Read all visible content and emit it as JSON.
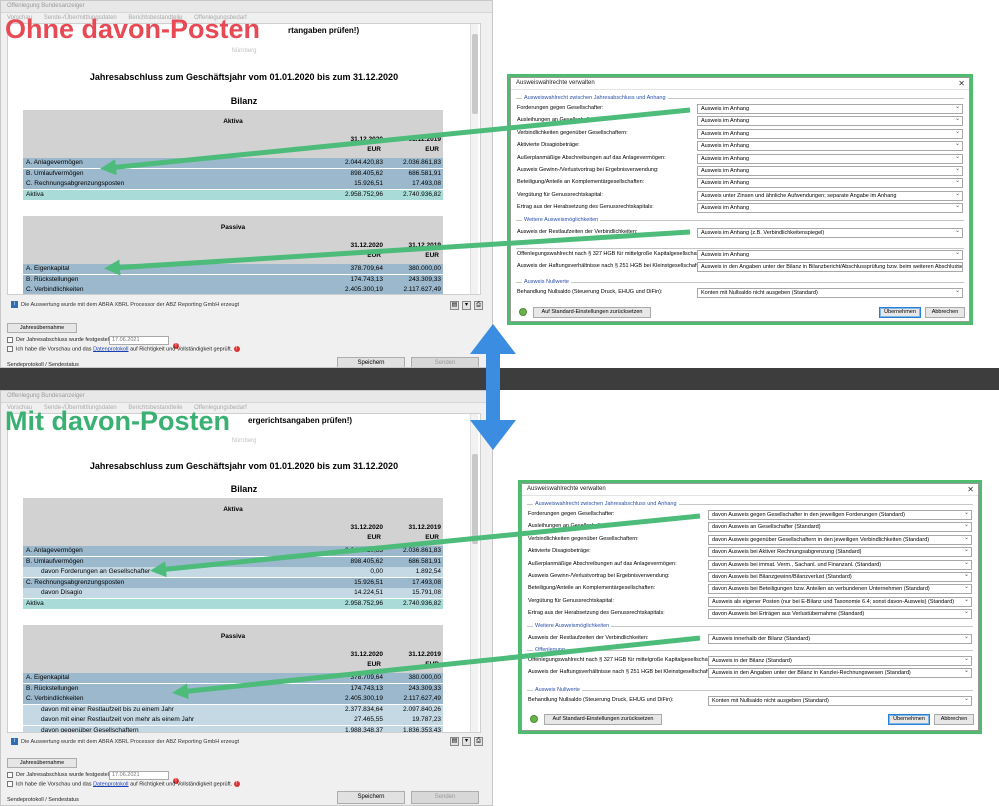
{
  "overlay": {
    "top_label": "Ohne davon-Posten",
    "bottom_label": "Mit davon-Posten"
  },
  "top_app": {
    "window_title": "Offenlegung Bundesanzeiger",
    "tabs": [
      "Vorschau",
      "Sende-/Übermittlungsdaten",
      "Berichtsbestandteile",
      "Offenlegungsbedarf"
    ],
    "header_hint_fragment": "rtangaben prüfen!)",
    "city": "Nürnberg",
    "doc_title": "Jahresabschluss zum Geschäftsjahr vom 01.01.2020 bis zum 31.12.2020",
    "bilanz_title": "Bilanz",
    "aktiva_title": "Aktiva",
    "passiva_title": "Passiva",
    "col1_date": "31.12.2020",
    "col2_date": "31.12.2019",
    "currency": "EUR",
    "aktiva_rows": [
      {
        "label": "A. Anlagevermögen",
        "v1": "2.044.420,83",
        "v2": "2.036.861,83"
      },
      {
        "label": "B. Umlaufvermögen",
        "v1": "898.405,62",
        "v2": "686.581,91"
      },
      {
        "label": "C. Rechnungsabgrenzungsposten",
        "v1": "15.926,51",
        "v2": "17.493,08"
      },
      {
        "label": "Aktiva",
        "v1": "2.958.752,96",
        "v2": "2.740.936,82"
      }
    ],
    "passiva_rows": [
      {
        "label": "A. Eigenkapital",
        "v1": "378.709,64",
        "v2": "380.000,00"
      },
      {
        "label": "B. Rückstellungen",
        "v1": "174.743,13",
        "v2": "243.309,33"
      },
      {
        "label": "C. Verbindlichkeiten",
        "v1": "2.405.300,19",
        "v2": "2.117.627,49"
      },
      {
        "label": "Passiva",
        "v1": "2.958.752,96",
        "v2": "2.740.936,82"
      }
    ],
    "footer_note": "Die Auswertung wurde mit dem ABRA XBRL Processor der ABZ Reporting GmbH erzeugt",
    "jahresuebernahme_btn": "Jahresübernahme",
    "chk1_label": "Der Jahresabschluss wurde festgestellt am:",
    "date_value": "17.06.2021",
    "chk2_prefix": "Ich habe die Vorschau und das",
    "chk2_link": "Datenprotokoll",
    "chk2_suffix": "auf Richtigkeit und Vollständigkeit geprüft.",
    "save_btn": "Speichern",
    "send_btn": "Senden",
    "sendeprotokoll": "Sendeprotokoll / Sendestatus"
  },
  "bottom_app": {
    "window_title": "Offenlegung Bundesanzeiger",
    "tabs": [
      "Vorschau",
      "Sende-/Übermittlungsdaten",
      "Berichtsbestandteile",
      "Offenlegungsbedarf"
    ],
    "header_hint_fragment": "ergerichtsangaben prüfen!)",
    "city": "Nürnberg",
    "doc_title": "Jahresabschluss zum Geschäftsjahr vom 01.01.2020 bis zum 31.12.2020",
    "bilanz_title": "Bilanz",
    "aktiva_title": "Aktiva",
    "passiva_title": "Passiva",
    "col1_date": "31.12.2020",
    "col2_date": "31.12.2019",
    "currency": "EUR",
    "aktiva_rows": [
      {
        "label": "A. Anlagevermögen",
        "v1": "2.044.420,83",
        "v2": "2.036.861,83",
        "style": "blue"
      },
      {
        "label": "B. Umlaufvermögen",
        "v1": "898.405,62",
        "v2": "686.581,91",
        "style": "blue"
      },
      {
        "label": "davon Forderungen an Gesellschafter",
        "v1": "0,00",
        "v2": "1.892,54",
        "style": "lblue",
        "sub": true
      },
      {
        "label": "C. Rechnungsabgrenzungsposten",
        "v1": "15.926,51",
        "v2": "17.493,08",
        "style": "blue"
      },
      {
        "label": "davon Disagio",
        "v1": "14.224,51",
        "v2": "15.791,08",
        "style": "lblue",
        "sub": true
      },
      {
        "label": "Aktiva",
        "v1": "2.958.752,96",
        "v2": "2.740.936,82",
        "style": "teal"
      }
    ],
    "passiva_rows": [
      {
        "label": "A. Eigenkapital",
        "v1": "378.709,64",
        "v2": "380.000,00",
        "style": "blue"
      },
      {
        "label": "B. Rückstellungen",
        "v1": "174.743,13",
        "v2": "243.309,33",
        "style": "blue"
      },
      {
        "label": "C. Verbindlichkeiten",
        "v1": "2.405.300,19",
        "v2": "2.117.627,49",
        "style": "blue"
      },
      {
        "label": "davon mit einer Restlaufzeit bis zu einem Jahr",
        "v1": "2.377.834,64",
        "v2": "2.097.840,26",
        "style": "lblue",
        "sub": true
      },
      {
        "label": "davon mit einer Restlaufzeit von mehr als einem Jahr",
        "v1": "27.465,55",
        "v2": "19.787,23",
        "style": "lblue",
        "sub": true
      },
      {
        "label": "davon gegenüber Gesellschaftern",
        "v1": "1.988.348,37",
        "v2": "1.836.353,43",
        "style": "lblue",
        "sub": true
      },
      {
        "label": "Passiva",
        "v1": "2.958.752,96",
        "v2": "2.740.936,82",
        "style": "teal"
      }
    ],
    "footer_note": "Die Auswertung wurde mit dem ABRA XBRL Processor der ABZ Reporting GmbH erzeugt",
    "jahresuebernahme_btn": "Jahresübernahme",
    "chk1_label": "Der Jahresabschluss wurde festgestellt am:",
    "date_value": "17.06.2021",
    "chk2_prefix": "Ich habe die Vorschau und das",
    "chk2_link": "Datenprotokoll",
    "chk2_suffix": "auf Richtigkeit und Vollständigkeit geprüft.",
    "save_btn": "Speichern",
    "send_btn": "Senden",
    "sendeprotokoll": "Sendeprotokoll / Sendestatus"
  },
  "top_dialog": {
    "title": "Ausweiswahlrechte verwalten",
    "group1": "Ausweiswahlrecht zwischen Jahresabschluss und Anhang",
    "rows1": [
      {
        "label": "Forderungen gegen Gesellschafter:",
        "value": "Ausweis im Anhang"
      },
      {
        "label": "Ausleihungen an Gesellschafter:",
        "value": "Ausweis im Anhang"
      },
      {
        "label": "Verbindlichkeiten gegenüber Gesellschaftern:",
        "value": "Ausweis im Anhang"
      },
      {
        "label": "Aktivierte Disagiobeträge:",
        "value": "Ausweis im Anhang"
      },
      {
        "label": "Außerplanmäßige Abschreibungen auf das Anlagevermögen:",
        "value": "Ausweis im Anhang"
      },
      {
        "label": "Ausweis Gewinn-/Verlustvortrag bei Ergebnisverwendung:",
        "value": "Ausweis im Anhang"
      },
      {
        "label": "Beteiligung/Anteile an Komplementärgesellschaften:",
        "value": "Ausweis im Anhang"
      },
      {
        "label": "Vergütung für Genussrechtskapital:",
        "value": "Ausweis unter Zinsen und ähnliche Aufwendungen; separate Angabe im Anhang"
      },
      {
        "label": "Ertrag aus der Herabsetzung des Genussrechtskapitals:",
        "value": "Ausweis im Anhang"
      }
    ],
    "group2": "Weitere Ausweismöglichkeiten",
    "rows2": [
      {
        "label": "Ausweis der Restlaufzeiten der Verbindlichkeiten:",
        "value": "Ausweis im Anhang (z.B. Verbindlichkeitenspiegel)"
      }
    ],
    "rows3": [
      {
        "label": "Offenlegungswahlrecht nach § 327 HGB für mittelgroße Kapitalgesellschaften:",
        "value": "Ausweis im Anhang"
      },
      {
        "label": "Ausweis der Haftungsverhältnisse nach § 251 HGB bei Kleinstgesellschaften:",
        "value": "Ausweis in den Angaben unter der Bilanz in Bilanzbericht/Abschlussprüfung bzw. beim weiteren Abschlusses"
      }
    ],
    "group4": "Ausweis Nullwerte",
    "rows4": [
      {
        "label": "Behandlung Nullsaldo (Steuerung Druck, EHUG und DiFin):",
        "value": "Konten mit Nullsaldo nicht ausgeben (Standard)"
      }
    ],
    "reset_btn": "Auf Standard-Einstellungen zurücksetzen",
    "ok_btn": "Übernehmen",
    "cancel_btn": "Abbrechen"
  },
  "bottom_dialog": {
    "title": "Ausweiswahlrechte verwalten",
    "group1": "Ausweiswahlrecht zwischen Jahresabschluss und Anhang",
    "rows1": [
      {
        "label": "Forderungen gegen Gesellschafter:",
        "value": "davon Ausweis gegen Gesellschafter in den jeweiligen Forderungen (Standard)"
      },
      {
        "label": "Ausleihungen an Gesellschafter:",
        "value": "davon Ausweis an Gesellschafter (Standard)"
      },
      {
        "label": "Verbindlichkeiten gegenüber Gesellschaftern:",
        "value": "davon Ausweis gegenüber Gesellschaftern in den jeweiligen Verbindlichkeiten (Standard)"
      },
      {
        "label": "Aktivierte Disagiobeträge:",
        "value": "davon Ausweis bei Aktiver Rechnungsabgrenzung (Standard)"
      },
      {
        "label": "Außerplanmäßige Abschreibungen auf das Anlagevermögen:",
        "value": "davon Ausweis bei immat. Verm., Sachanl. und Finanzanl. (Standard)"
      },
      {
        "label": "Ausweis Gewinn-/Verlustvortrag bei Ergebnisverwendung:",
        "value": "davon Ausweis bei Bilanzgewinn/Bilanzverlust (Standard)"
      },
      {
        "label": "Beteiligung/Anteile an Komplementärgesellschaften:",
        "value": "davon Ausweis bei Beteiligungen bzw. Anteilen an verbundenen Unternehmen (Standard)"
      },
      {
        "label": "Vergütung für Genussrechtskapital:",
        "value": "Ausweis als eigener Posten (nur bei E-Bilanz und Taxonomie 6.4; sonst davon-Ausweis) (Standard)"
      },
      {
        "label": "Ertrag aus der Herabsetzung des Genussrechtskapitals:",
        "value": "davon Ausweis bei Erträgen aus Verlustübernahme (Standard)"
      }
    ],
    "group2": "Weitere Ausweismöglichkeiten",
    "rows2": [
      {
        "label": "Ausweis der Restlaufzeiten der Verbindlichkeiten:",
        "value": "Ausweis innerhalb der Bilanz (Standard)"
      }
    ],
    "group3": "Offenlegung",
    "rows3": [
      {
        "label": "Offenlegungswahlrecht nach § 327 HGB für mittelgroße Kapitalgesellschaften:",
        "value": "Ausweis in der Bilanz (Standard)"
      },
      {
        "label": "Ausweis der Haftungsverhältnisse nach § 251 HGB bei Kleinstgesellschaften:",
        "value": "Ausweis in den Angaben unter der Bilanz in Kanzlei-Rechnungswesen (Standard)"
      }
    ],
    "group4": "Ausweis Nullwerte",
    "rows4": [
      {
        "label": "Behandlung Nullsaldo (Steuerung Druck, EHUG und DiFin):",
        "value": "Konten mit Nullsaldo nicht ausgeben (Standard)"
      }
    ],
    "reset_btn": "Auf Standard-Einstellungen zurücksetzen",
    "ok_btn": "Übernehmen",
    "cancel_btn": "Abbrechen"
  },
  "colors": {
    "arrow_green": "#4dbb7a",
    "arrow_blue": "#3a8de0",
    "title_red": "#e84a55",
    "title_green": "#3ab073"
  }
}
